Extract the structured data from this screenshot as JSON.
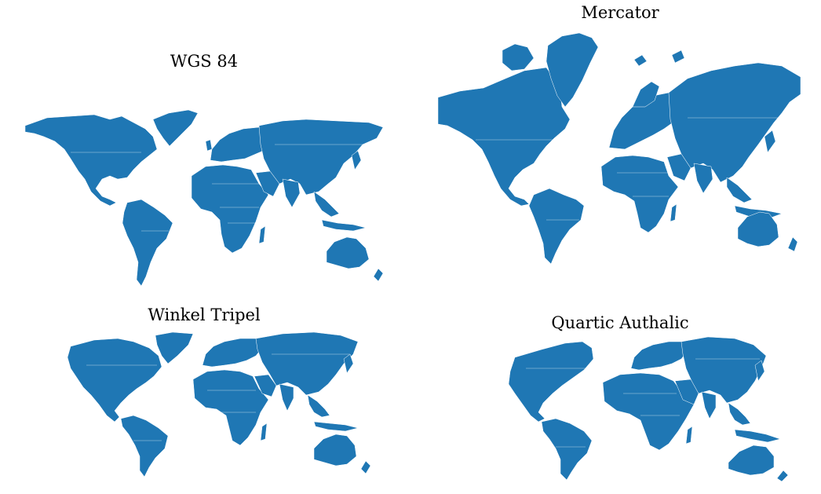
{
  "figure": {
    "panels": [
      {
        "title": "WGS 84",
        "projection": "plate-carree"
      },
      {
        "title": "Mercator",
        "projection": "mercator"
      },
      {
        "title": "Winkel Tripel",
        "projection": "winkel-tripel"
      },
      {
        "title": "Quartic Authalic",
        "projection": "quartic-authalic"
      }
    ],
    "land_color": "#1f77b4",
    "border_color": "#ffffff"
  }
}
